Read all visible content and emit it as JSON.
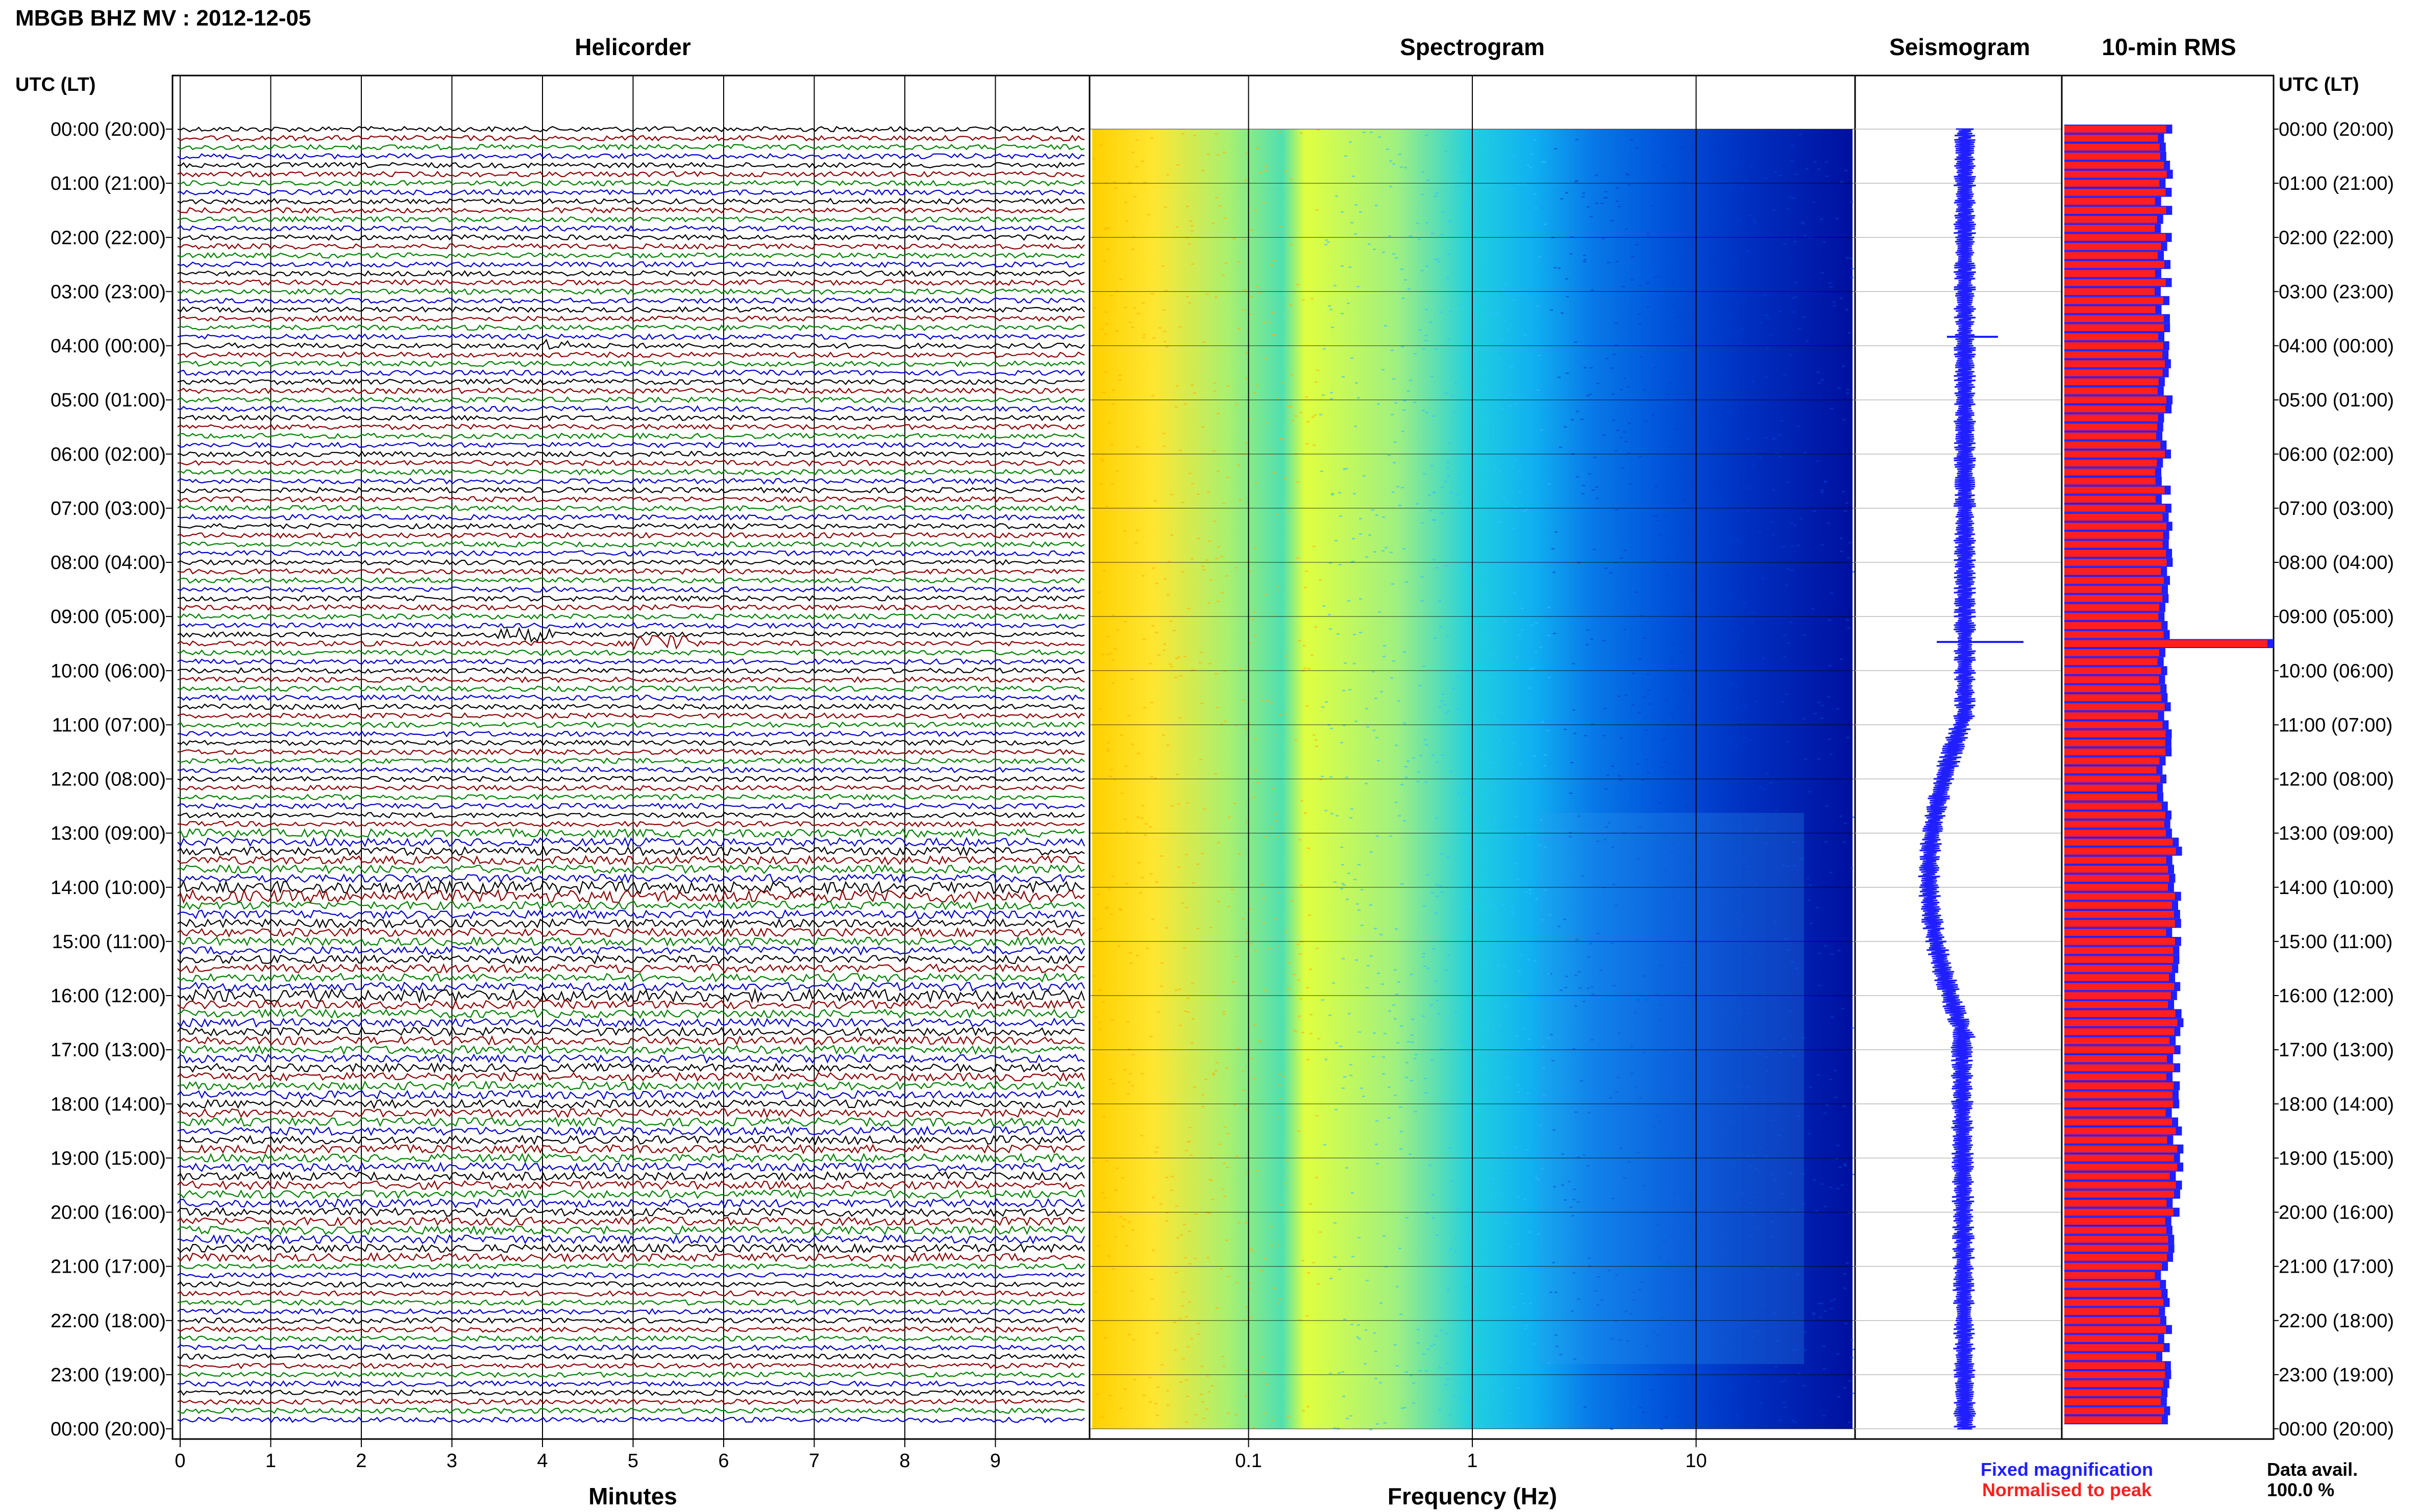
{
  "header": {
    "title": "MBGB BHZ MV : 2012-12-05",
    "left_axis_label": "UTC (LT)",
    "right_axis_label": "UTC (LT)"
  },
  "panels": {
    "helicorder": "Helicorder",
    "spectrogram": "Spectrogram",
    "seismogram": "Seismogram",
    "rms": "10-min RMS"
  },
  "axes": {
    "minutes_label": "Minutes",
    "minutes_ticks": [
      "0",
      "1",
      "2",
      "3",
      "4",
      "5",
      "6",
      "7",
      "8",
      "9"
    ],
    "frequency_label": "Frequency (Hz)",
    "frequency_ticks": [
      "0.1",
      "1",
      "10"
    ]
  },
  "legend": {
    "fixed": "Fixed magnification",
    "normalised": "Normalised to peak",
    "fixed_color": "#1f1fff",
    "normalised_color": "#ff1f1f"
  },
  "data_avail": {
    "label": "Data avail.",
    "value": "100.0 %"
  },
  "time_labels": [
    "00:00 (20:00)",
    "01:00 (21:00)",
    "02:00 (22:00)",
    "03:00 (23:00)",
    "04:00 (00:00)",
    "05:00 (01:00)",
    "06:00 (02:00)",
    "07:00 (03:00)",
    "08:00 (04:00)",
    "09:00 (05:00)",
    "10:00 (06:00)",
    "11:00 (07:00)",
    "12:00 (08:00)",
    "13:00 (09:00)",
    "14:00 (10:00)",
    "15:00 (11:00)",
    "16:00 (12:00)",
    "17:00 (13:00)",
    "18:00 (14:00)",
    "19:00 (15:00)",
    "20:00 (16:00)",
    "21:00 (17:00)",
    "22:00 (18:00)",
    "23:00 (19:00)",
    "00:00 (20:00)"
  ],
  "trace_colors": [
    "#000000",
    "#8b0000",
    "#008000",
    "#0000cd"
  ],
  "chart_data": [
    {
      "type": "line",
      "title": "Helicorder",
      "xlabel": "Minutes",
      "x_range": [
        0,
        10
      ],
      "rows": 144,
      "row_minutes": 10,
      "note_events": [
        "04:00 small events",
        "09:30 regional earthquake"
      ]
    },
    {
      "type": "heatmap",
      "title": "Spectrogram",
      "xlabel": "Frequency (Hz)",
      "x_scale": "log",
      "x_range": [
        0.02,
        50
      ],
      "colormap": [
        "#ffff00",
        "#7fff7f",
        "#00ffff",
        "#0080ff",
        "#0000a0"
      ]
    },
    {
      "type": "line",
      "title": "Seismogram",
      "color": "#1f1fff"
    },
    {
      "type": "bar",
      "title": "10-min RMS",
      "orientation": "horizontal",
      "interval_minutes": 10,
      "count": 144,
      "fixed_color": "#1f1fff",
      "normalised_color": "#ff1f1f"
    }
  ]
}
